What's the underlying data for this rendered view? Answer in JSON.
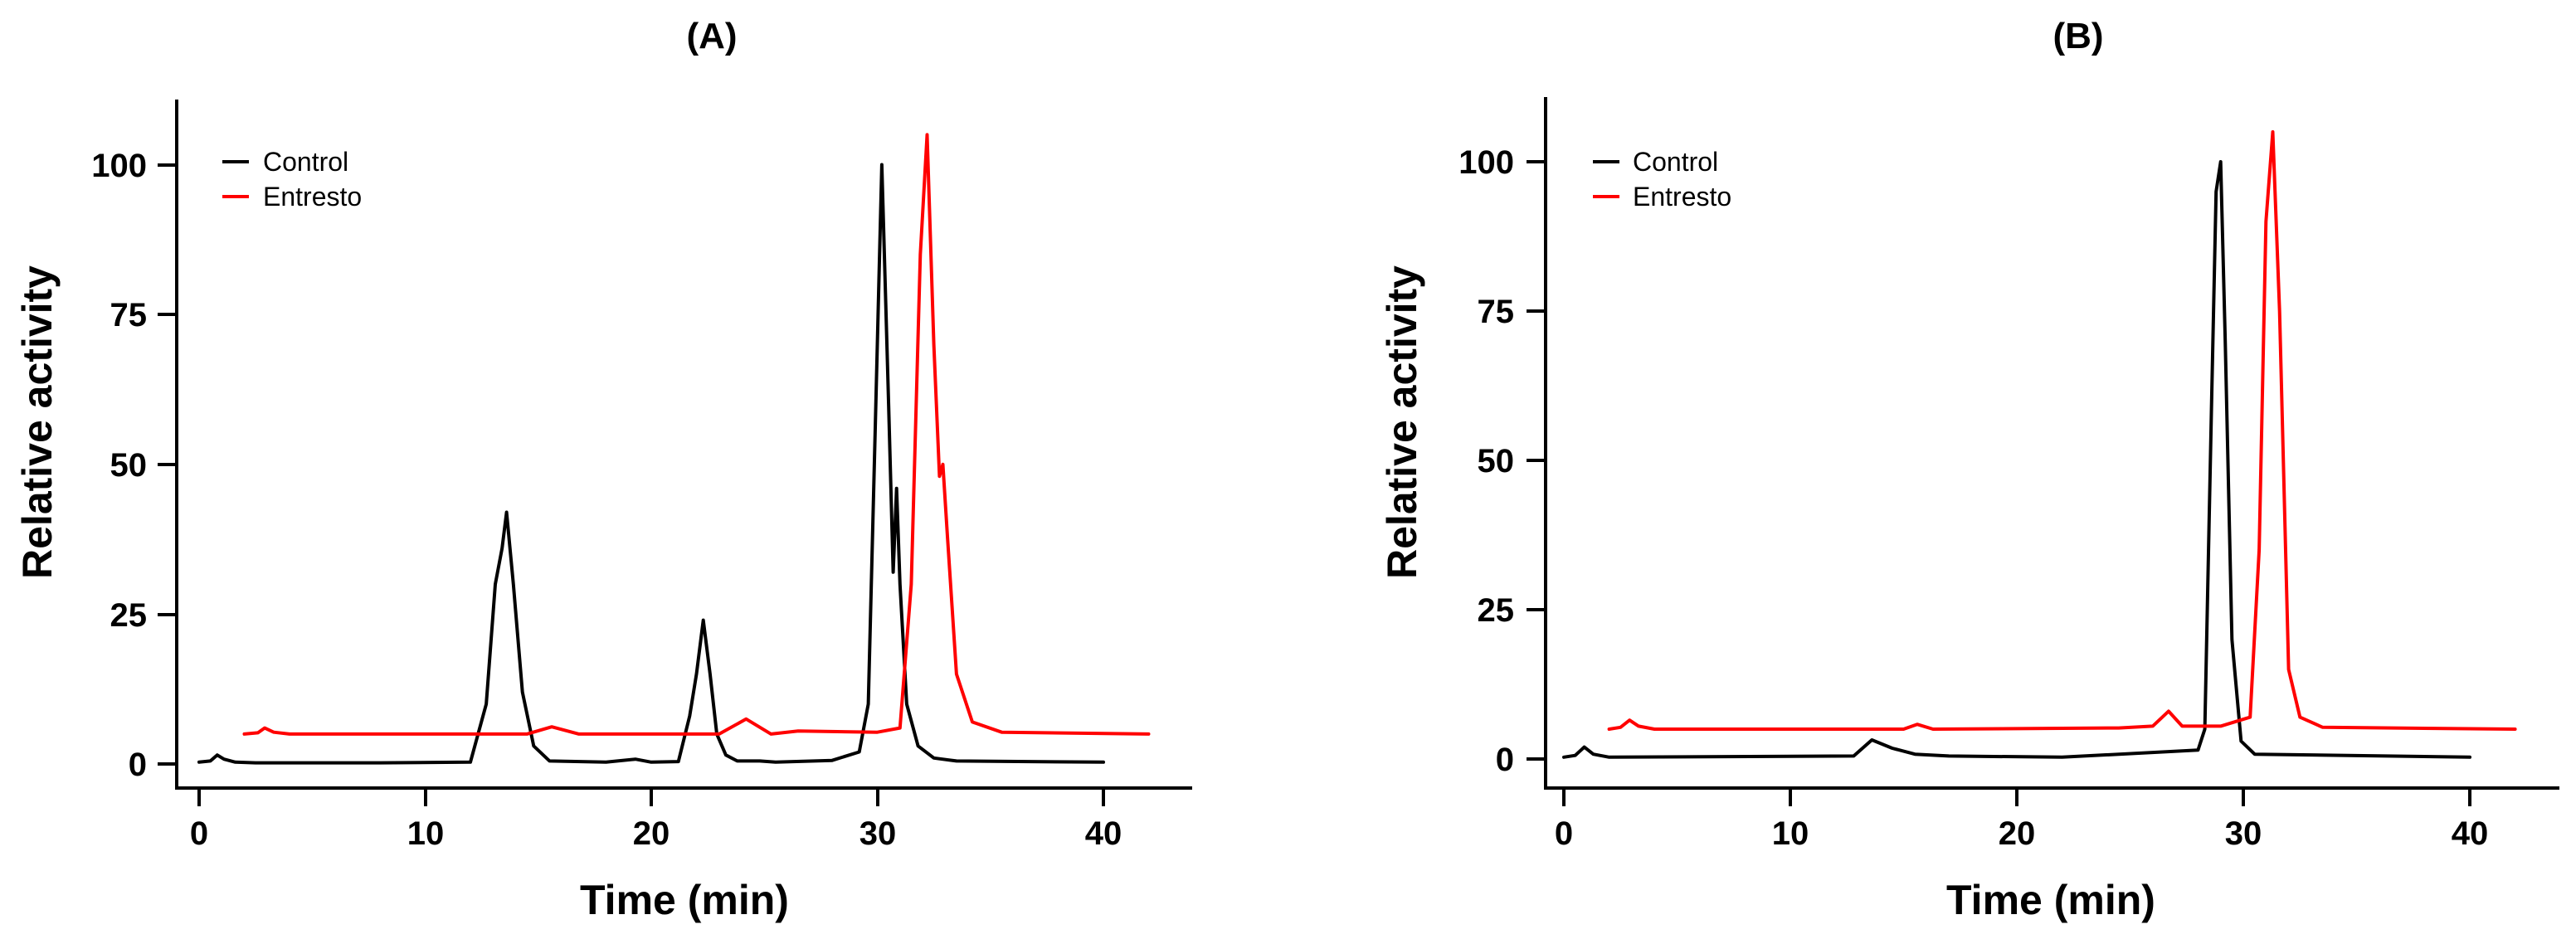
{
  "chart_data": [
    {
      "type": "line",
      "title": "(A)",
      "xlabel": "Time (min)",
      "ylabel": "Relative activity",
      "xlim": [
        0,
        45
      ],
      "ylim": [
        0,
        110
      ],
      "xticks": [
        "0",
        "10",
        "20",
        "30",
        "40"
      ],
      "yticks": [
        "0",
        "25",
        "50",
        "75",
        "100"
      ],
      "grid": false,
      "legend": "top-left",
      "series": [
        {
          "name": "Control",
          "color": "#000000",
          "x": [
            0,
            0.5,
            0.8,
            1.1,
            1.6,
            2.5,
            8,
            12,
            12.7,
            13.1,
            13.4,
            13.6,
            13.9,
            14.3,
            14.8,
            15.5,
            18,
            19.3,
            20,
            21.2,
            21.7,
            22.0,
            22.3,
            22.6,
            22.9,
            23.3,
            23.8,
            24.8,
            25.5,
            28,
            29.2,
            29.6,
            29.9,
            30.2,
            30.5,
            30.7,
            30.85,
            31.0,
            31.3,
            31.8,
            32.5,
            33.5,
            40
          ],
          "values": [
            0.3,
            0.5,
            1.5,
            0.8,
            0.3,
            0.2,
            0.2,
            0.3,
            10,
            30,
            36,
            42,
            30,
            12,
            3,
            0.5,
            0.3,
            0.8,
            0.3,
            0.4,
            8,
            15,
            24,
            15,
            5,
            1.5,
            0.5,
            0.5,
            0.3,
            0.6,
            2,
            10,
            55,
            100,
            60,
            32,
            46,
            30,
            10,
            3,
            1,
            0.5,
            0.3
          ]
        },
        {
          "name": "Entresto",
          "color": "#ff0000",
          "x": [
            2,
            2.6,
            2.9,
            3.3,
            4,
            14.5,
            15.6,
            16.8,
            23,
            24.2,
            25.3,
            26.5,
            30,
            31.0,
            31.5,
            31.9,
            32.2,
            32.5,
            32.75,
            32.9,
            33.1,
            33.5,
            34.2,
            35.5,
            42
          ],
          "values": [
            5,
            5.2,
            6,
            5.3,
            5,
            5,
            6.2,
            5,
            5,
            7.5,
            5,
            5.5,
            5.3,
            6,
            30,
            85,
            105,
            70,
            48,
            50,
            38,
            15,
            7,
            5.3,
            5
          ]
        }
      ]
    },
    {
      "type": "line",
      "title": "(B)",
      "xlabel": "Time (min)",
      "ylabel": "Relative activity",
      "xlim": [
        0,
        45
      ],
      "ylim": [
        0,
        110
      ],
      "xticks": [
        "0",
        "10",
        "20",
        "30",
        "40"
      ],
      "yticks": [
        "0",
        "25",
        "50",
        "75",
        "100"
      ],
      "grid": false,
      "legend": "top-left",
      "series": [
        {
          "name": "Control",
          "color": "#000000",
          "x": [
            0,
            0.5,
            0.9,
            1.3,
            2,
            12.8,
            13.6,
            14.5,
            15.5,
            17,
            22,
            28,
            28.3,
            28.6,
            28.8,
            29.0,
            29.2,
            29.5,
            29.9,
            30.5,
            40
          ],
          "values": [
            0.3,
            0.6,
            2,
            0.8,
            0.3,
            0.5,
            3.2,
            1.8,
            0.8,
            0.5,
            0.3,
            1.5,
            5,
            60,
            95,
            100,
            70,
            20,
            3,
            0.8,
            0.3
          ]
        },
        {
          "name": "Entresto",
          "color": "#ff0000",
          "x": [
            2,
            2.5,
            2.9,
            3.3,
            4,
            15,
            15.6,
            16.3,
            24.5,
            26,
            26.7,
            27.3,
            29,
            30.3,
            30.7,
            31.0,
            31.3,
            31.6,
            32.0,
            32.5,
            33.5,
            42
          ],
          "values": [
            5,
            5.3,
            6.5,
            5.5,
            5,
            5,
            5.8,
            5,
            5.2,
            5.5,
            8,
            5.5,
            5.5,
            7,
            35,
            90,
            105,
            75,
            15,
            7,
            5.3,
            5
          ]
        }
      ]
    }
  ]
}
